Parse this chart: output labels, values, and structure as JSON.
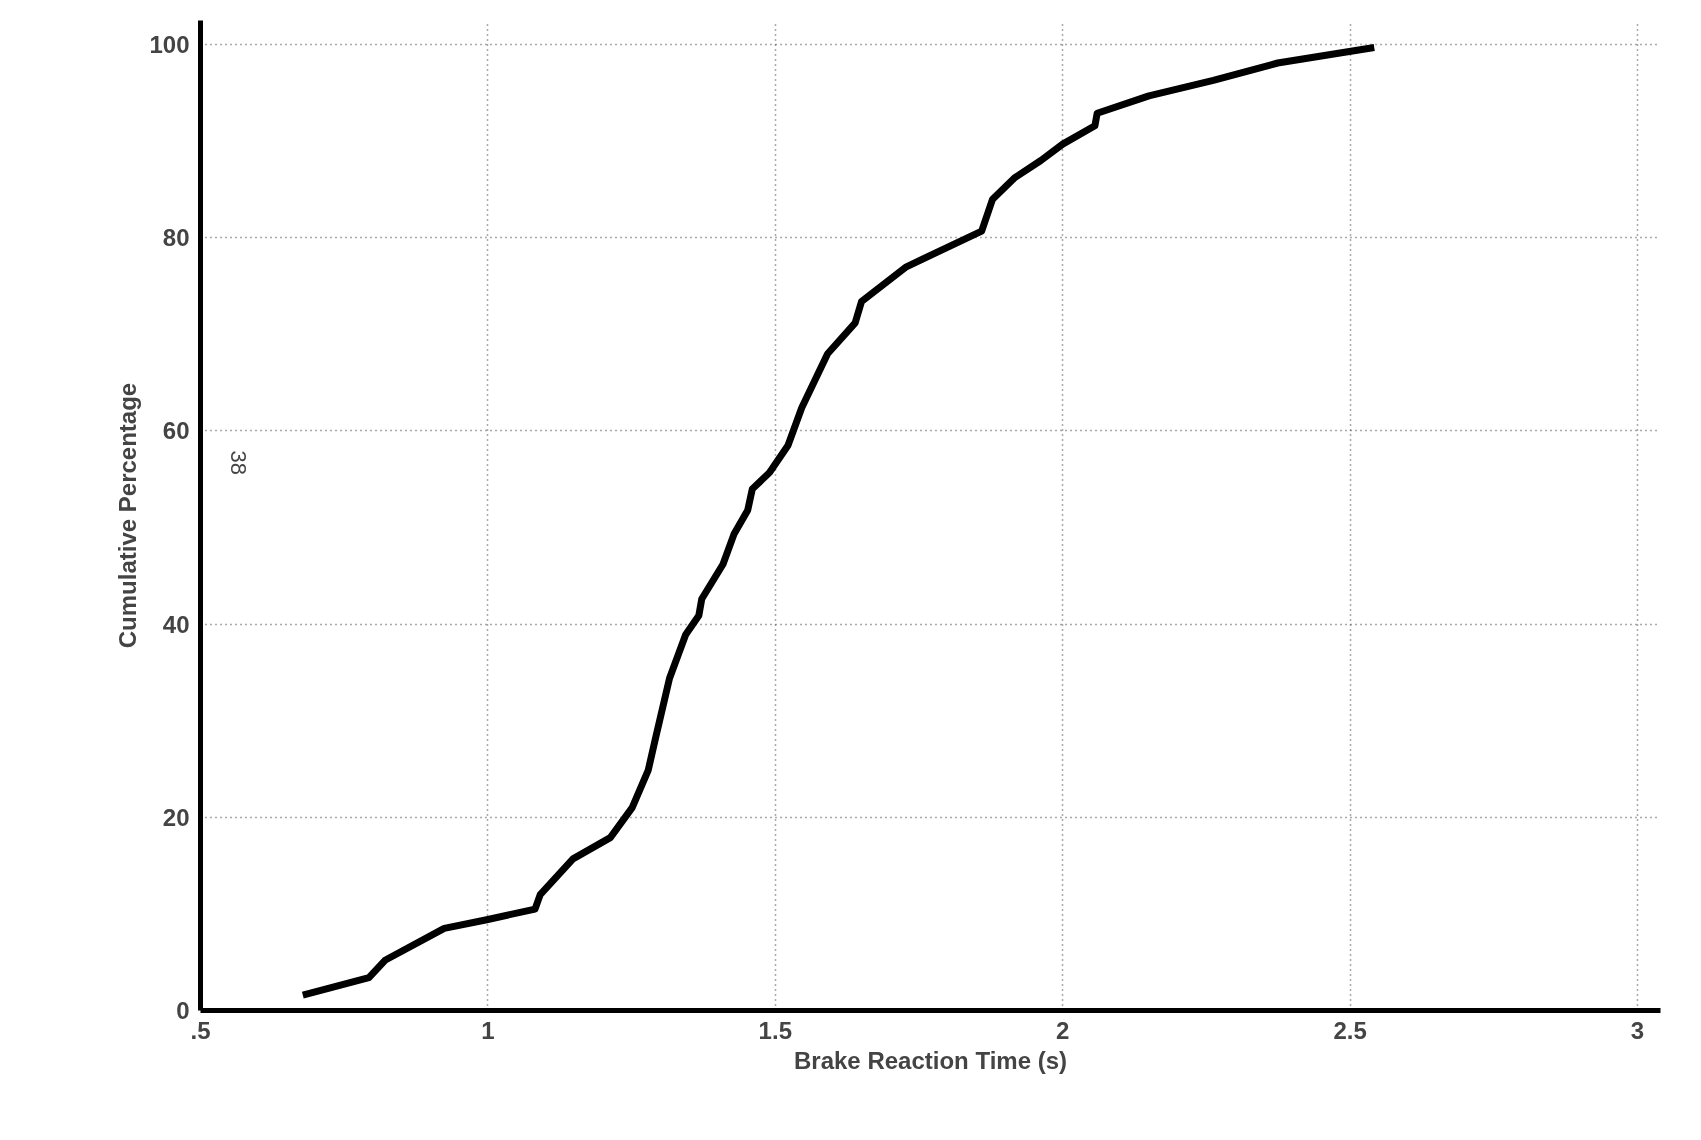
{
  "chart_data": {
    "type": "line",
    "xlabel": "Brake Reaction Time (s)",
    "ylabel": "Cumulative Percentage",
    "annotations": [
      "38"
    ],
    "x": [
      0.678,
      0.793,
      0.821,
      0.924,
      0.998,
      1.082,
      1.091,
      1.148,
      1.213,
      1.251,
      1.279,
      1.292,
      1.316,
      1.344,
      1.367,
      1.372,
      1.409,
      1.428,
      1.452,
      1.46,
      1.49,
      1.522,
      1.546,
      1.591,
      1.639,
      1.65,
      1.728,
      1.859,
      1.878,
      1.916,
      1.962,
      2.0,
      2.056,
      2.06,
      2.15,
      2.262,
      2.374,
      2.542
    ],
    "series": [
      {
        "color": "#000000",
        "values": [
          1.6,
          3.4,
          5.2,
          8.5,
          9.4,
          10.5,
          12.0,
          15.7,
          17.9,
          21.0,
          24.9,
          28.3,
          34.4,
          38.9,
          40.9,
          42.6,
          46.2,
          49.3,
          51.8,
          54.0,
          55.7,
          58.5,
          62.4,
          68.0,
          71.2,
          73.4,
          77.0,
          80.7,
          84.0,
          86.2,
          88.0,
          89.7,
          91.6,
          92.9,
          94.7,
          96.3,
          98.1,
          99.7
        ]
      }
    ],
    "xlim": [
      0.5,
      3.04
    ],
    "ylim": [
      0,
      102.5
    ],
    "xticks": [
      {
        "value": 0.5,
        "label": ".5"
      },
      1,
      1.5,
      2,
      2.5,
      3
    ],
    "yticks": [
      0,
      20,
      40,
      60,
      80,
      100
    ],
    "grid": true,
    "line_style": "solid",
    "marker": "none"
  }
}
